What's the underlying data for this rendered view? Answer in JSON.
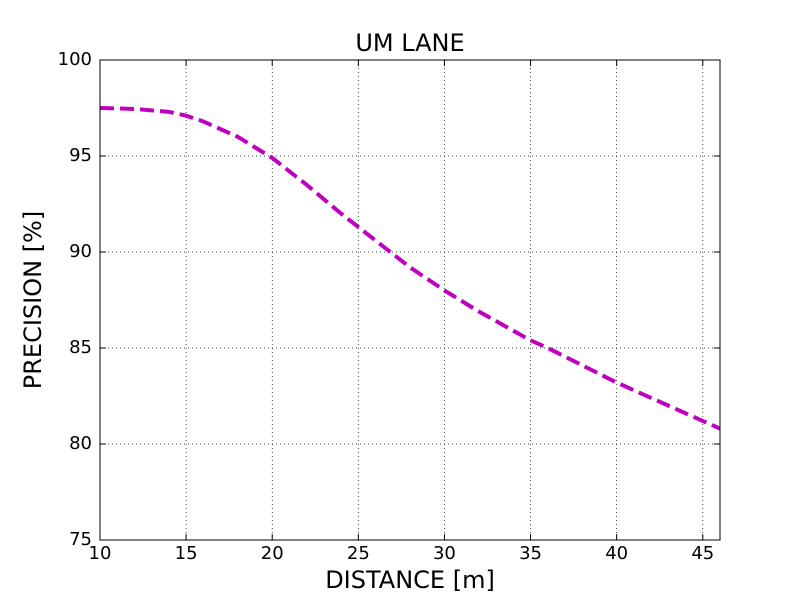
{
  "chart_data": {
    "type": "line",
    "title": "UM LANE",
    "x_label": "DISTANCE [m]",
    "y_label": "PRECISION [%]",
    "x": [
      10,
      12,
      14,
      15,
      16,
      18,
      20,
      22,
      24,
      25,
      26,
      28,
      30,
      32,
      34,
      35,
      36,
      38,
      40,
      42,
      44,
      46
    ],
    "series": [
      {
        "name": "UM LANE",
        "color": "#bf00bf",
        "line_style": "dashed",
        "values": [
          97.5,
          97.45,
          97.3,
          97.1,
          96.8,
          96.0,
          94.9,
          93.5,
          92.0,
          91.3,
          90.6,
          89.2,
          88.0,
          86.9,
          85.9,
          85.4,
          85.0,
          84.1,
          83.2,
          82.4,
          81.6,
          80.8
        ]
      }
    ],
    "xlim": [
      10,
      46
    ],
    "ylim": [
      75,
      100
    ],
    "xticks": [
      10,
      15,
      20,
      25,
      30,
      35,
      40,
      45
    ],
    "yticks": [
      75,
      80,
      85,
      90,
      95,
      100
    ],
    "grid": true
  }
}
